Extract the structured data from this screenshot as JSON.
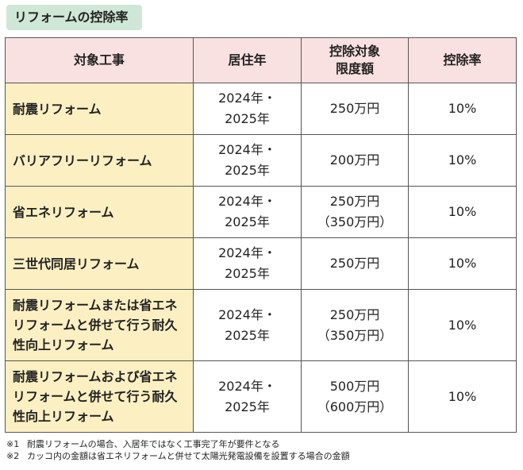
{
  "title": "リフォームの控除率",
  "table": {
    "headers": [
      "対象工事",
      "居住年",
      "控除対象\n限度額",
      "控除率"
    ],
    "rows": [
      {
        "type": "耐震リフォーム",
        "year": "2024年・\n2025年",
        "limit": "250万円",
        "rate": "10%"
      },
      {
        "type": "バリアフリーリフォーム",
        "year": "2024年・\n2025年",
        "limit": "200万円",
        "rate": "10%"
      },
      {
        "type": "省エネリフォーム",
        "year": "2024年・\n2025年",
        "limit": "250万円\n（350万円）",
        "rate": "10%"
      },
      {
        "type": "三世代同居リフォーム",
        "year": "2024年・\n2025年",
        "limit": "250万円",
        "rate": "10%"
      },
      {
        "type": "耐震リフォームまたは省エネ\nリフォームと併せて行う耐久\n性向上リフォーム",
        "year": "2024年・\n2025年",
        "limit": "250万円\n（350万円）",
        "rate": "10%"
      },
      {
        "type": "耐震リフォームおよび省エネ\nリフォームと併せて行う耐久\n性向上リフォーム",
        "year": "2024年・\n2025年",
        "limit": "500万円\n（600万円）",
        "rate": "10%"
      }
    ]
  },
  "notes": [
    {
      "mark": "※1",
      "text": "耐震リフォームの場合、入居年ではなく工事完了年が要件となる"
    },
    {
      "mark": "※2",
      "text": "カッコ内の金額は省エネリフォームと併せて太陽光発電設備を設置する場合の金額"
    }
  ]
}
